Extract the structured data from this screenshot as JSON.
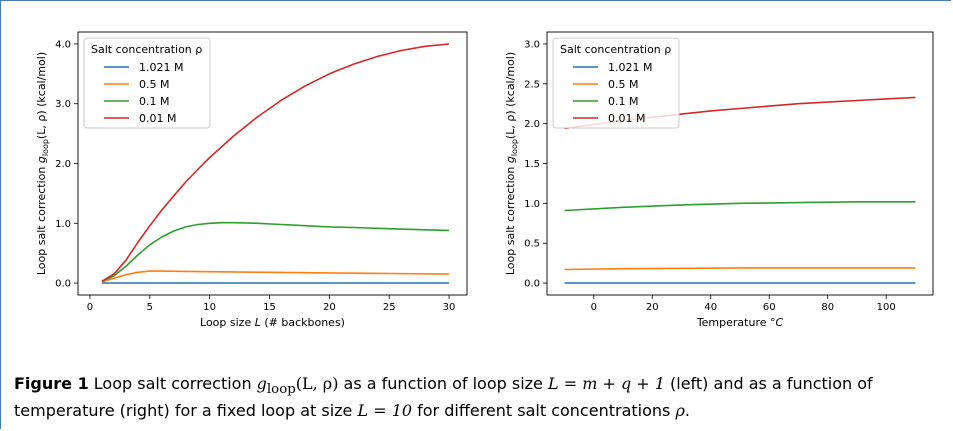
{
  "chart_data": [
    {
      "type": "line",
      "xlabel_pre": "Loop size ",
      "xlabel_var": "L",
      "xlabel_post": " (# backbones)",
      "ylabel_pre": "Loop salt correction ",
      "ylabel_fn": "g",
      "ylabel_sub": "loop",
      "ylabel_args": "(L, ρ)",
      "ylabel_post": " (kcal/mol)",
      "xlim": [
        -1,
        31.5
      ],
      "ylim": [
        -0.2,
        4.2
      ],
      "xticks": [
        0,
        5,
        10,
        15,
        20,
        25,
        30
      ],
      "xtick_labels": [
        "0",
        "5",
        "10",
        "15",
        "20",
        "25",
        "30"
      ],
      "yticks": [
        0,
        1,
        2,
        3,
        4
      ],
      "ytick_labels": [
        "0.0",
        "1.0",
        "2.0",
        "3.0",
        "4.0"
      ],
      "legend_title": "Salt concentration ρ",
      "legend_position": "top-left",
      "series": [
        {
          "name": "1.021 M",
          "color": "#1f77b4",
          "x": [
            1,
            2,
            3,
            5,
            10,
            15,
            20,
            25,
            30
          ],
          "y": [
            0.0,
            0.0,
            0.0,
            0.0,
            0.0,
            0.0,
            0.0,
            0.0,
            0.0
          ]
        },
        {
          "name": "0.5 M",
          "color": "#ff7f0e",
          "x": [
            1,
            2,
            3,
            4,
            5,
            6,
            8,
            10,
            15,
            20,
            25,
            30
          ],
          "y": [
            0.02,
            0.08,
            0.14,
            0.18,
            0.2,
            0.2,
            0.195,
            0.19,
            0.18,
            0.17,
            0.16,
            0.15
          ]
        },
        {
          "name": "0.1 M",
          "color": "#2ca02c",
          "x": [
            1,
            2,
            3,
            4,
            5,
            6,
            7,
            8,
            9,
            10,
            11,
            12,
            14,
            16,
            18,
            20,
            22,
            25,
            28,
            30
          ],
          "y": [
            0.03,
            0.12,
            0.28,
            0.47,
            0.64,
            0.77,
            0.87,
            0.94,
            0.98,
            1.0,
            1.01,
            1.01,
            1.0,
            0.98,
            0.96,
            0.94,
            0.93,
            0.91,
            0.89,
            0.88
          ]
        },
        {
          "name": "0.01 M",
          "color": "#d62728",
          "x": [
            1,
            2,
            3,
            4,
            5,
            6,
            7,
            8,
            9,
            10,
            12,
            14,
            16,
            18,
            20,
            22,
            24,
            26,
            28,
            30
          ],
          "y": [
            0.03,
            0.15,
            0.38,
            0.68,
            0.96,
            1.22,
            1.46,
            1.69,
            1.9,
            2.1,
            2.46,
            2.78,
            3.06,
            3.3,
            3.5,
            3.66,
            3.79,
            3.89,
            3.96,
            4.0
          ]
        }
      ]
    },
    {
      "type": "line",
      "xlabel_pre": "Temperature ",
      "xlabel_var": "°C",
      "xlabel_post": "",
      "ylabel_pre": "Loop salt correction ",
      "ylabel_fn": "g",
      "ylabel_sub": "loop",
      "ylabel_args": "(L, ρ)",
      "ylabel_post": " (kcal/mol)",
      "xlim": [
        -16,
        116
      ],
      "ylim": [
        -0.15,
        3.15
      ],
      "xticks": [
        0,
        20,
        40,
        60,
        80,
        100
      ],
      "xtick_labels": [
        "0",
        "20",
        "40",
        "60",
        "80",
        "100"
      ],
      "yticks": [
        0,
        0.5,
        1,
        1.5,
        2,
        2.5,
        3
      ],
      "ytick_labels": [
        "0.0",
        "0.5",
        "1.0",
        "1.5",
        "2.0",
        "2.5",
        "3.0"
      ],
      "legend_title": "Salt concentration ρ",
      "legend_position": "top-left",
      "series": [
        {
          "name": "1.021 M",
          "color": "#1f77b4",
          "x": [
            -10,
            110
          ],
          "y": [
            0.0,
            0.0
          ]
        },
        {
          "name": "0.5 M",
          "color": "#ff7f0e",
          "x": [
            -10,
            10,
            30,
            50,
            70,
            90,
            110
          ],
          "y": [
            0.17,
            0.18,
            0.185,
            0.19,
            0.19,
            0.19,
            0.19
          ]
        },
        {
          "name": "0.1 M",
          "color": "#2ca02c",
          "x": [
            -10,
            10,
            30,
            50,
            70,
            90,
            110
          ],
          "y": [
            0.91,
            0.95,
            0.98,
            1.0,
            1.01,
            1.02,
            1.02
          ]
        },
        {
          "name": "0.01 M",
          "color": "#d62728",
          "x": [
            -10,
            0,
            10,
            20,
            30,
            40,
            50,
            60,
            70,
            80,
            90,
            100,
            110
          ],
          "y": [
            1.94,
            1.99,
            2.04,
            2.08,
            2.12,
            2.16,
            2.19,
            2.22,
            2.25,
            2.27,
            2.29,
            2.31,
            2.33
          ]
        }
      ]
    }
  ],
  "caption": {
    "label": "Figure 1",
    "t1": " Loop salt correction ",
    "g": "g",
    "g_sub": "loop",
    "g_args": "(L, ρ)",
    "t2": " as a function of loop size ",
    "eq1": "L = m + q + 1",
    "t3": " (left) and as a function of temperature (right) for a fixed loop at size ",
    "eq2": "L = 10",
    "t4": " for different salt concentrations ",
    "rho": "ρ",
    "t5": "."
  }
}
